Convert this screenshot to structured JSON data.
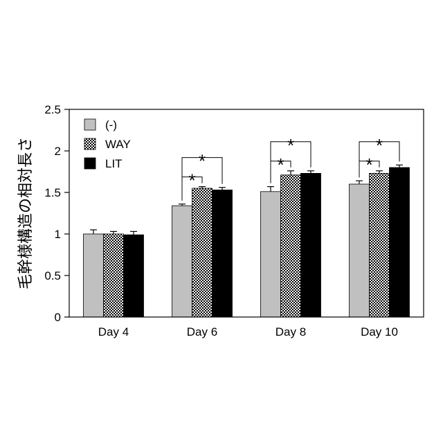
{
  "chart_data": {
    "type": "bar",
    "title": "",
    "xlabel": "",
    "ylabel": "毛幹様構造の相対長さ",
    "ylim": [
      0,
      2.5
    ],
    "yticks": [
      0,
      0.5,
      1,
      1.5,
      2,
      2.5
    ],
    "ytick_labels": [
      "0",
      "0.5",
      "1",
      "1.5",
      "2",
      "2.5"
    ],
    "grid": false,
    "legend_position": "top-left",
    "categories": [
      "Day 4",
      "Day 6",
      "Day 8",
      "Day 10"
    ],
    "series": [
      {
        "name": "(-)",
        "color": "#c0c0c0",
        "pattern": "solid-gray",
        "values": [
          1.0,
          1.34,
          1.51,
          1.6
        ],
        "errors": [
          0.05,
          0.02,
          0.06,
          0.04
        ]
      },
      {
        "name": "WAY",
        "color": "#4a4a4a",
        "pattern": "dots",
        "values": [
          1.0,
          1.55,
          1.71,
          1.73
        ],
        "errors": [
          0.03,
          0.02,
          0.05,
          0.03
        ]
      },
      {
        "name": "LIT",
        "color": "#000000",
        "pattern": "solid-black",
        "values": [
          0.99,
          1.53,
          1.73,
          1.8
        ],
        "errors": [
          0.04,
          0.03,
          0.03,
          0.03
        ]
      }
    ],
    "significance": [
      {
        "category": 1,
        "from_series": 0,
        "to_series": 1,
        "label": "*"
      },
      {
        "category": 1,
        "from_series": 0,
        "to_series": 2,
        "label": "*"
      },
      {
        "category": 2,
        "from_series": 0,
        "to_series": 1,
        "label": "*"
      },
      {
        "category": 2,
        "from_series": 0,
        "to_series": 2,
        "label": "*"
      },
      {
        "category": 3,
        "from_series": 0,
        "to_series": 1,
        "label": "*"
      },
      {
        "category": 3,
        "from_series": 0,
        "to_series": 2,
        "label": "*"
      }
    ]
  }
}
